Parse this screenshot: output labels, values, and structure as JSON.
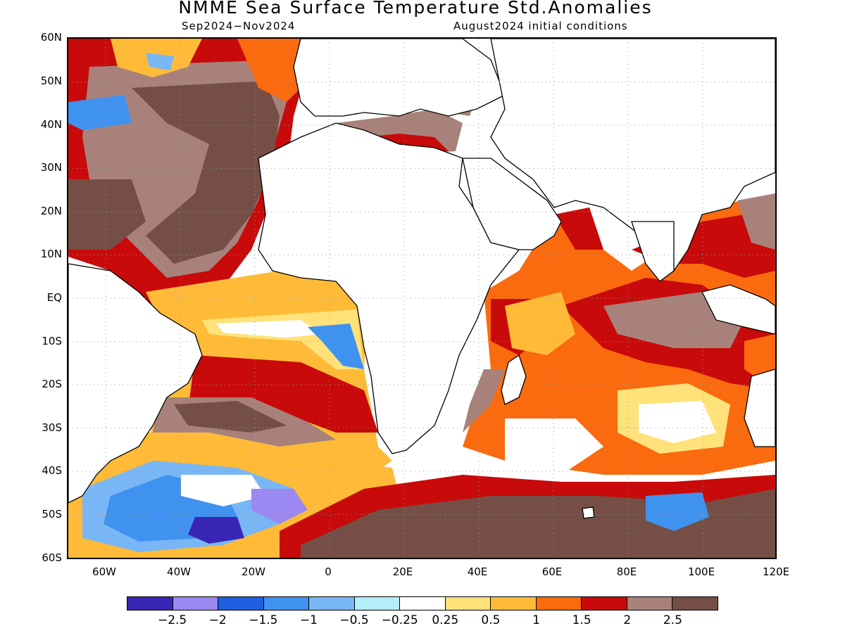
{
  "title": "NMME Sea Surface Temperature Std.Anomalies",
  "period": "Sep2024−Nov2024",
  "initial_conditions": "August2024 initial conditions",
  "lat_labels": [
    "60N",
    "50N",
    "40N",
    "30N",
    "20N",
    "10N",
    "EQ",
    "10S",
    "20S",
    "30S",
    "40S",
    "50S",
    "60S"
  ],
  "lon_labels": [
    "60W",
    "40W",
    "20W",
    "0",
    "20E",
    "40E",
    "60E",
    "80E",
    "100E",
    "120E"
  ],
  "colorbar": {
    "colors": [
      "#3a26b5",
      "#9b88f0",
      "#1f5fe0",
      "#3f92ef",
      "#79b6f5",
      "#b3eefa",
      "#ffffff",
      "#ffe27a",
      "#ffbb38",
      "#fa6a0e",
      "#c80a0a",
      "#a8827a",
      "#754f45"
    ],
    "labels": [
      "−2.5",
      "−2",
      "−1.5",
      "−1",
      "−0.5",
      "−0.25",
      "0.25",
      "0.5",
      "1",
      "1.5",
      "2",
      "2.5"
    ]
  }
}
